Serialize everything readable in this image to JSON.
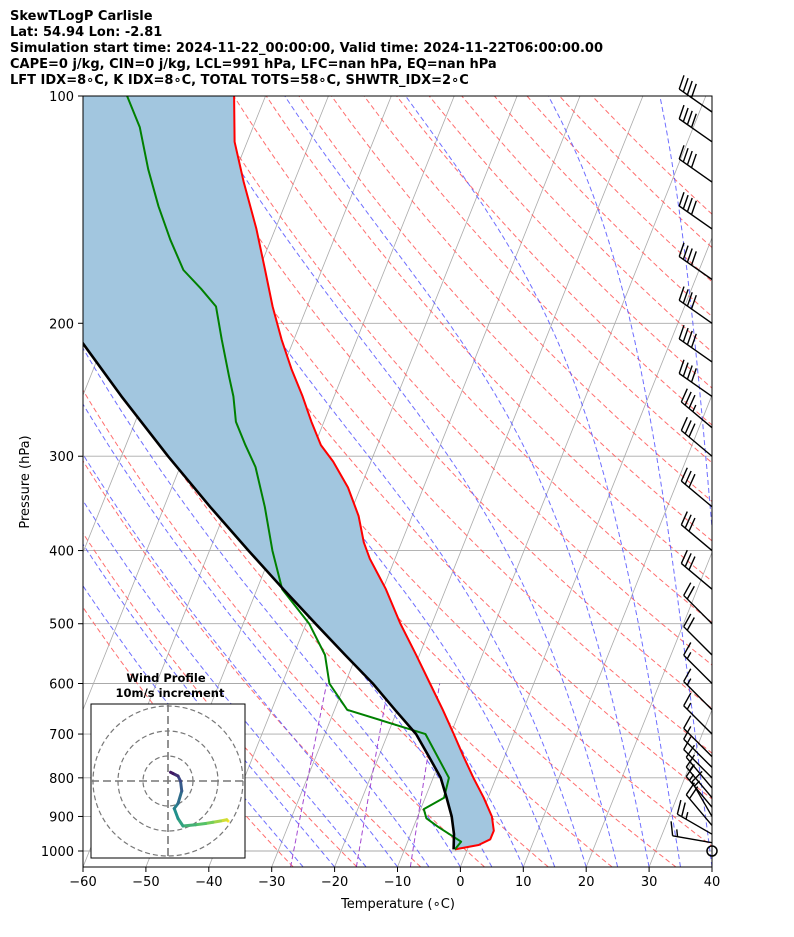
{
  "header": {
    "line1": "SkewTLogP Carlisle",
    "line2": "Lat: 54.94   Lon: -2.81",
    "line3": "Simulation start time: 2024-11-22_00:00:00, Valid time: 2024-11-22T06:00:00.00",
    "line4": "CAPE=0 j/kg, CIN=0 j/kg, LCL=991 hPa, LFC=nan hPa, EQ=nan hPa",
    "line5": "LFT IDX=8∘C, K IDX=8∘C, TOTAL TOTS=58∘C, SHWTR_IDX=2∘C"
  },
  "colors": {
    "temperature": "#ff0000",
    "dewpoint": "#008000",
    "parcel": "#000000",
    "cape_fill": "#a2c6df",
    "dry_adiabats": "#ff5555",
    "moist_adiabats": "#5555ff",
    "mixing_ratio": "#9933cc",
    "isotherms": "#aaaaaa",
    "isobars": "#aaaaaa"
  },
  "chart_data": [
    {
      "type": "line",
      "name": "skew-t-log-p",
      "xlabel": "Temperature (∘C)",
      "ylabel": "Pressure (hPa)",
      "xlim": [
        -60,
        40
      ],
      "ylim": [
        1050,
        100
      ],
      "x_ticks": [
        -60,
        -50,
        -40,
        -30,
        -20,
        -10,
        0,
        10,
        20,
        30,
        40
      ],
      "y_ticks": [
        1000,
        900,
        800,
        700,
        600,
        500,
        400,
        300,
        200,
        100
      ],
      "skew_degC_per_decade": 48,
      "series": [
        {
          "name": "Temperature",
          "points": [
            [
              -2,
              995
            ],
            [
              1.5,
              982
            ],
            [
              3,
              965
            ],
            [
              3,
              940
            ],
            [
              1.8,
              900
            ],
            [
              -0.7,
              850
            ],
            [
              -3.6,
              800
            ],
            [
              -6.5,
              750
            ],
            [
              -9.5,
              700
            ],
            [
              -12.8,
              650
            ],
            [
              -16.5,
              600
            ],
            [
              -20.5,
              550
            ],
            [
              -25,
              500
            ],
            [
              -29.5,
              450
            ],
            [
              -34,
              410
            ],
            [
              -36,
              390
            ],
            [
              -38.5,
              360
            ],
            [
              -42,
              330
            ],
            [
              -46,
              305
            ],
            [
              -49,
              290
            ],
            [
              -52,
              270
            ],
            [
              -55,
              250
            ],
            [
              -58.5,
              230
            ],
            [
              -62,
              210
            ],
            [
              -65.5,
              190
            ],
            [
              -69,
              170
            ],
            [
              -73,
              150
            ],
            [
              -78,
              130
            ],
            [
              -82,
              115
            ],
            [
              -85,
              100
            ]
          ]
        },
        {
          "name": "Dewpoint",
          "points": [
            [
              -2,
              995
            ],
            [
              -1.5,
              972
            ],
            [
              -6,
              930
            ],
            [
              -8.5,
              905
            ],
            [
              -9.5,
              880
            ],
            [
              -7,
              850
            ],
            [
              -7.5,
              800
            ],
            [
              -14,
              700
            ],
            [
              -28,
              650
            ],
            [
              -32.5,
              600
            ],
            [
              -35,
              550
            ],
            [
              -39.5,
              500
            ],
            [
              -46,
              450
            ],
            [
              -50,
              400
            ],
            [
              -54,
              350
            ],
            [
              -58,
              310
            ],
            [
              -61,
              290
            ],
            [
              -64,
              270
            ],
            [
              -66,
              250
            ],
            [
              -68,
              235
            ],
            [
              -71.5,
              210
            ],
            [
              -74.5,
              190
            ],
            [
              -78,
              180
            ],
            [
              -82,
              170
            ],
            [
              -86,
              155
            ],
            [
              -90,
              140
            ],
            [
              -94,
              125
            ],
            [
              -98,
              110
            ],
            [
              -102,
              100
            ]
          ]
        },
        {
          "name": "Parcel",
          "points": [
            [
              -2.2,
              995
            ],
            [
              -3.1,
              950
            ],
            [
              -4.6,
              900
            ],
            [
              -6.6,
              850
            ],
            [
              -8.8,
              800
            ],
            [
              -12,
              750
            ],
            [
              -15.5,
              700
            ],
            [
              -20.4,
              650
            ],
            [
              -25.6,
              600
            ],
            [
              -31.8,
              550
            ],
            [
              -38.5,
              500
            ],
            [
              -45.8,
              450
            ],
            [
              -53.8,
              400
            ],
            [
              -62.7,
              350
            ],
            [
              -72.6,
              300
            ],
            [
              -83.8,
              250
            ],
            [
              -96.9,
              200
            ],
            [
              -112.5,
              150
            ],
            [
              -132.3,
              100
            ]
          ]
        }
      ],
      "wind_barbs": [
        {
          "p": 1000,
          "speed_kt": 0
        },
        {
          "p": 975,
          "speed_kt": 15,
          "dir": 280
        },
        {
          "p": 950,
          "speed_kt": 25,
          "dir": 300
        },
        {
          "p": 925,
          "speed_kt": 20,
          "dir": 320
        },
        {
          "p": 900,
          "speed_kt": 15,
          "dir": 330
        },
        {
          "p": 875,
          "speed_kt": 15,
          "dir": 320
        },
        {
          "p": 850,
          "speed_kt": 15,
          "dir": 320
        },
        {
          "p": 825,
          "speed_kt": 10,
          "dir": 320
        },
        {
          "p": 800,
          "speed_kt": 10,
          "dir": 315
        },
        {
          "p": 775,
          "speed_kt": 10,
          "dir": 315
        },
        {
          "p": 750,
          "speed_kt": 10,
          "dir": 315
        },
        {
          "p": 700,
          "speed_kt": 15,
          "dir": 315
        },
        {
          "p": 650,
          "speed_kt": 15,
          "dir": 315
        },
        {
          "p": 600,
          "speed_kt": 15,
          "dir": 315
        },
        {
          "p": 550,
          "speed_kt": 20,
          "dir": 315
        },
        {
          "p": 500,
          "speed_kt": 20,
          "dir": 315
        },
        {
          "p": 450,
          "speed_kt": 30,
          "dir": 310
        },
        {
          "p": 400,
          "speed_kt": 30,
          "dir": 310
        },
        {
          "p": 350,
          "speed_kt": 30,
          "dir": 310
        },
        {
          "p": 300,
          "speed_kt": 30,
          "dir": 310
        },
        {
          "p": 275,
          "speed_kt": 35,
          "dir": 310
        },
        {
          "p": 250,
          "speed_kt": 40,
          "dir": 305
        },
        {
          "p": 225,
          "speed_kt": 40,
          "dir": 305
        },
        {
          "p": 200,
          "speed_kt": 40,
          "dir": 305
        },
        {
          "p": 175,
          "speed_kt": 40,
          "dir": 305
        },
        {
          "p": 150,
          "speed_kt": 40,
          "dir": 305
        },
        {
          "p": 130,
          "speed_kt": 40,
          "dir": 305
        },
        {
          "p": 115,
          "speed_kt": 40,
          "dir": 305
        },
        {
          "p": 105,
          "speed_kt": 40,
          "dir": 305
        }
      ]
    },
    {
      "type": "scatter",
      "name": "wind-profile-hodograph",
      "title": "Wind Profile",
      "subtitle": "10m/s increment",
      "ring_increment_ms": 10,
      "rings": 3,
      "xlim": [
        -30,
        30
      ],
      "ylim": [
        -30,
        30
      ],
      "u": [
        24,
        23.5,
        21,
        18,
        15,
        11,
        6,
        4,
        2.5,
        4,
        5.5,
        5,
        4,
        2,
        1
      ],
      "v": [
        -16,
        -15.5,
        -16,
        -16.5,
        -17,
        -17.5,
        -18,
        -15,
        -11,
        -9,
        -4,
        0,
        2,
        3,
        3.5
      ]
    }
  ]
}
